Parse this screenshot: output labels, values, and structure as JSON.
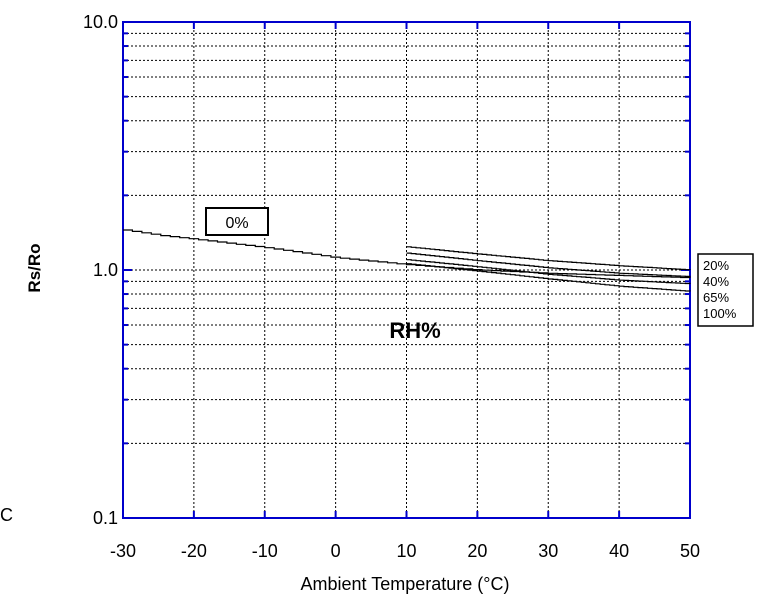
{
  "chart_data": {
    "type": "line",
    "xlabel": "Ambient Temperature (°C)",
    "ylabel": "Rs/Ro",
    "xlim": [
      -30,
      50
    ],
    "ylim": [
      0.1,
      10
    ],
    "yscale": "log",
    "grid": true,
    "x_ticks": [
      "-30",
      "-20",
      "-10",
      "0",
      "10",
      "20",
      "30",
      "40",
      "50"
    ],
    "y_ticks": [
      "0.1",
      "1.0",
      "10.0"
    ],
    "group_label": "RH%",
    "series_label_0": "0%",
    "legend": [
      "20%",
      "40%",
      "65%",
      "100%"
    ],
    "series": [
      {
        "name": "0%",
        "x": [
          -30,
          -25,
          -20,
          -10,
          0,
          10,
          20,
          30,
          40,
          50
        ],
        "y": [
          1.45,
          1.38,
          1.33,
          1.23,
          1.12,
          1.05,
          1.0,
          0.97,
          0.95,
          0.93
        ]
      },
      {
        "name": "20%",
        "x": [
          10,
          20,
          30,
          40,
          50
        ],
        "y": [
          1.24,
          1.16,
          1.09,
          1.04,
          1.0
        ]
      },
      {
        "name": "40%",
        "x": [
          10,
          20,
          30,
          40,
          50
        ],
        "y": [
          1.17,
          1.09,
          1.02,
          0.97,
          0.94
        ]
      },
      {
        "name": "65%",
        "x": [
          10,
          20,
          30,
          40,
          50
        ],
        "y": [
          1.1,
          1.03,
          0.96,
          0.91,
          0.88
        ]
      },
      {
        "name": "100%",
        "x": [
          10,
          20,
          30,
          40,
          50
        ],
        "y": [
          1.06,
          0.99,
          0.92,
          0.86,
          0.82
        ]
      }
    ]
  },
  "stray_text": "C"
}
